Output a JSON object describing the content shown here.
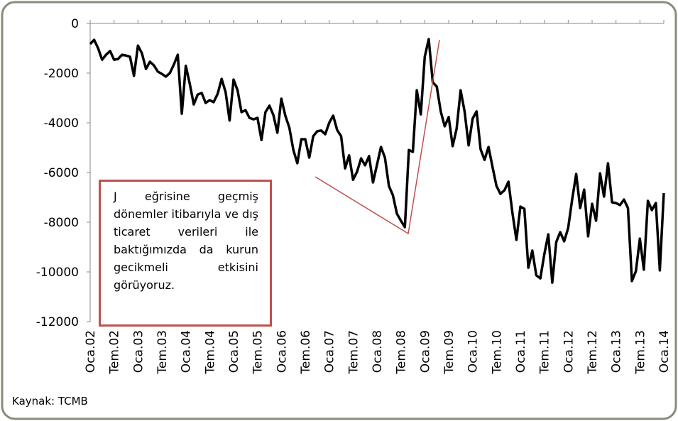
{
  "chart_data": {
    "type": "line",
    "annotation": "J eğrisine geçmiş dönemler itibarıyla ve dış ticaret verileri ile baktığımızda da kurun gecikmeli etkisini görüyoruz.",
    "source": "Kaynak: TCMB",
    "categories": [
      "Oca.02",
      null,
      null,
      null,
      null,
      null,
      "Tem.02",
      null,
      null,
      null,
      null,
      null,
      "Oca.03",
      null,
      null,
      null,
      null,
      null,
      "Tem.03",
      null,
      null,
      null,
      null,
      null,
      "Oca.04",
      null,
      null,
      null,
      null,
      null,
      "Tem.04",
      null,
      null,
      null,
      null,
      null,
      "Oca.05",
      null,
      null,
      null,
      null,
      null,
      "Tem.05",
      null,
      null,
      null,
      null,
      null,
      "Oca.06",
      null,
      null,
      null,
      null,
      null,
      "Tem.06",
      null,
      null,
      null,
      null,
      null,
      "Oca.07",
      null,
      null,
      null,
      null,
      null,
      "Tem.07",
      null,
      null,
      null,
      null,
      null,
      "Oca.08",
      null,
      null,
      null,
      null,
      null,
      "Tem.08",
      null,
      null,
      null,
      null,
      null,
      "Oca.09",
      null,
      null,
      null,
      null,
      null,
      "Tem.09",
      null,
      null,
      null,
      null,
      null,
      "Oca.10",
      null,
      null,
      null,
      null,
      null,
      "Tem.10",
      null,
      null,
      null,
      null,
      null,
      "Oca.11",
      null,
      null,
      null,
      null,
      null,
      "Tem.11",
      null,
      null,
      null,
      null,
      null,
      "Oca.12",
      null,
      null,
      null,
      null,
      null,
      "Tem.12",
      null,
      null,
      null,
      null,
      null,
      "Oca.13",
      null,
      null,
      null,
      null,
      null,
      "Tem.13",
      null,
      null,
      null,
      null,
      null,
      "Oca.14"
    ],
    "series": [
      {
        "color": "#000000",
        "values": [
          -830,
          -660,
          -1000,
          -1460,
          -1260,
          -1110,
          -1460,
          -1430,
          -1260,
          -1290,
          -1340,
          -2110,
          -890,
          -1200,
          -1830,
          -1540,
          -1690,
          -1940,
          -2030,
          -2140,
          -2000,
          -1660,
          -1260,
          -3630,
          -1710,
          -2430,
          -3260,
          -2860,
          -2800,
          -3200,
          -3090,
          -3170,
          -2830,
          -2230,
          -2770,
          -3910,
          -2260,
          -2690,
          -3570,
          -3490,
          -3800,
          -3860,
          -3800,
          -4690,
          -3570,
          -3310,
          -3690,
          -4400,
          -3030,
          -3710,
          -4200,
          -5090,
          -5630,
          -4660,
          -4660,
          -5400,
          -4540,
          -4340,
          -4310,
          -4460,
          -4000,
          -3710,
          -4290,
          -4540,
          -5830,
          -5310,
          -6290,
          -5970,
          -5430,
          -5710,
          -5340,
          -6400,
          -5690,
          -4970,
          -5400,
          -6540,
          -6910,
          -7660,
          -7940,
          -8200,
          -5090,
          -5170,
          -2690,
          -3660,
          -1340,
          -630,
          -2370,
          -2540,
          -3540,
          -4140,
          -3770,
          -4940,
          -4230,
          -2690,
          -3540,
          -4910,
          -3830,
          -3540,
          -5060,
          -5490,
          -4970,
          -5770,
          -6540,
          -6860,
          -6710,
          -6370,
          -7630,
          -8710,
          -7370,
          -7460,
          -9830,
          -9140,
          -10140,
          -10260,
          -9290,
          -8490,
          -10430,
          -8800,
          -8400,
          -8770,
          -8230,
          -7090,
          -6060,
          -7430,
          -6690,
          -8570,
          -7260,
          -7940,
          -6030,
          -6970,
          -5630,
          -7200,
          -7230,
          -7310,
          -7090,
          -7430,
          -10370,
          -9970,
          -8660,
          -9910,
          -7140,
          -7510,
          -7230,
          -9940,
          -6830
        ]
      }
    ],
    "ylim": [
      -12000,
      0
    ],
    "yticks": [
      0,
      -2000,
      -4000,
      -6000,
      -8000,
      -10000,
      -12000
    ],
    "grid": false
  }
}
